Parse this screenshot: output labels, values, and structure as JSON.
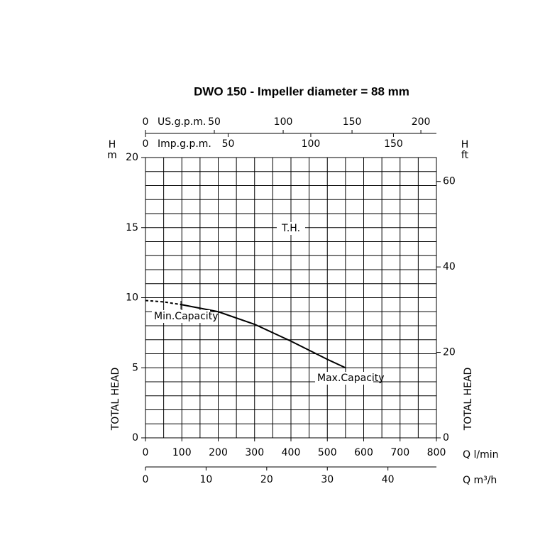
{
  "chart_data": {
    "type": "line",
    "title": "DWO 150 - Impeller diameter = 88 mm",
    "xlabel": "Q l/min",
    "ylabel": "TOTAL HEAD",
    "ysymbol": "H",
    "yunit": "m",
    "xlim": [
      0,
      800
    ],
    "xticks": [
      0,
      100,
      200,
      300,
      400,
      500,
      600,
      700,
      800
    ],
    "xgrid": [
      0,
      50,
      100,
      150,
      200,
      250,
      300,
      350,
      400,
      450,
      500,
      550,
      600,
      650,
      700,
      750,
      800
    ],
    "ylim": [
      0,
      20
    ],
    "yticks": [
      0,
      5,
      10,
      15,
      20
    ],
    "ygrid": [
      0,
      1,
      2,
      3,
      4,
      5,
      6,
      7,
      8,
      9,
      10,
      11,
      12,
      13,
      14,
      15,
      16,
      17,
      18,
      19,
      20
    ],
    "grid": true,
    "series": [
      {
        "color": "#000000",
        "dashed": true,
        "x": [
          0,
          50,
          100
        ],
        "values": [
          9.8,
          9.7,
          9.5
        ]
      },
      {
        "color": "#000000",
        "dashed": false,
        "x": [
          100,
          200,
          300,
          400,
          500,
          550
        ],
        "values": [
          9.5,
          9.0,
          8.1,
          6.9,
          5.6,
          5.0
        ]
      }
    ],
    "annotations": [
      "T.H.",
      "Min.Capacity",
      "Max.Capacity"
    ],
    "top_axes": [
      {
        "label": "US.g.p.m.",
        "lim": [
          0,
          211.3
        ],
        "ticks": [
          0,
          50,
          100,
          150,
          200
        ]
      },
      {
        "label": "Imp.g.p.m.",
        "lim": [
          0,
          176
        ],
        "ticks": [
          0,
          50,
          100,
          150
        ]
      }
    ],
    "bottom_axis": {
      "label": "Q m³/h",
      "lim": [
        0,
        48
      ],
      "ticks": [
        0,
        10,
        20,
        30,
        40
      ]
    },
    "right_axis": {
      "symbol": "H",
      "unit": "ft",
      "label": "TOTAL HEAD",
      "lim": [
        0,
        65.6
      ],
      "ticks": [
        0,
        20,
        40,
        60
      ]
    }
  }
}
